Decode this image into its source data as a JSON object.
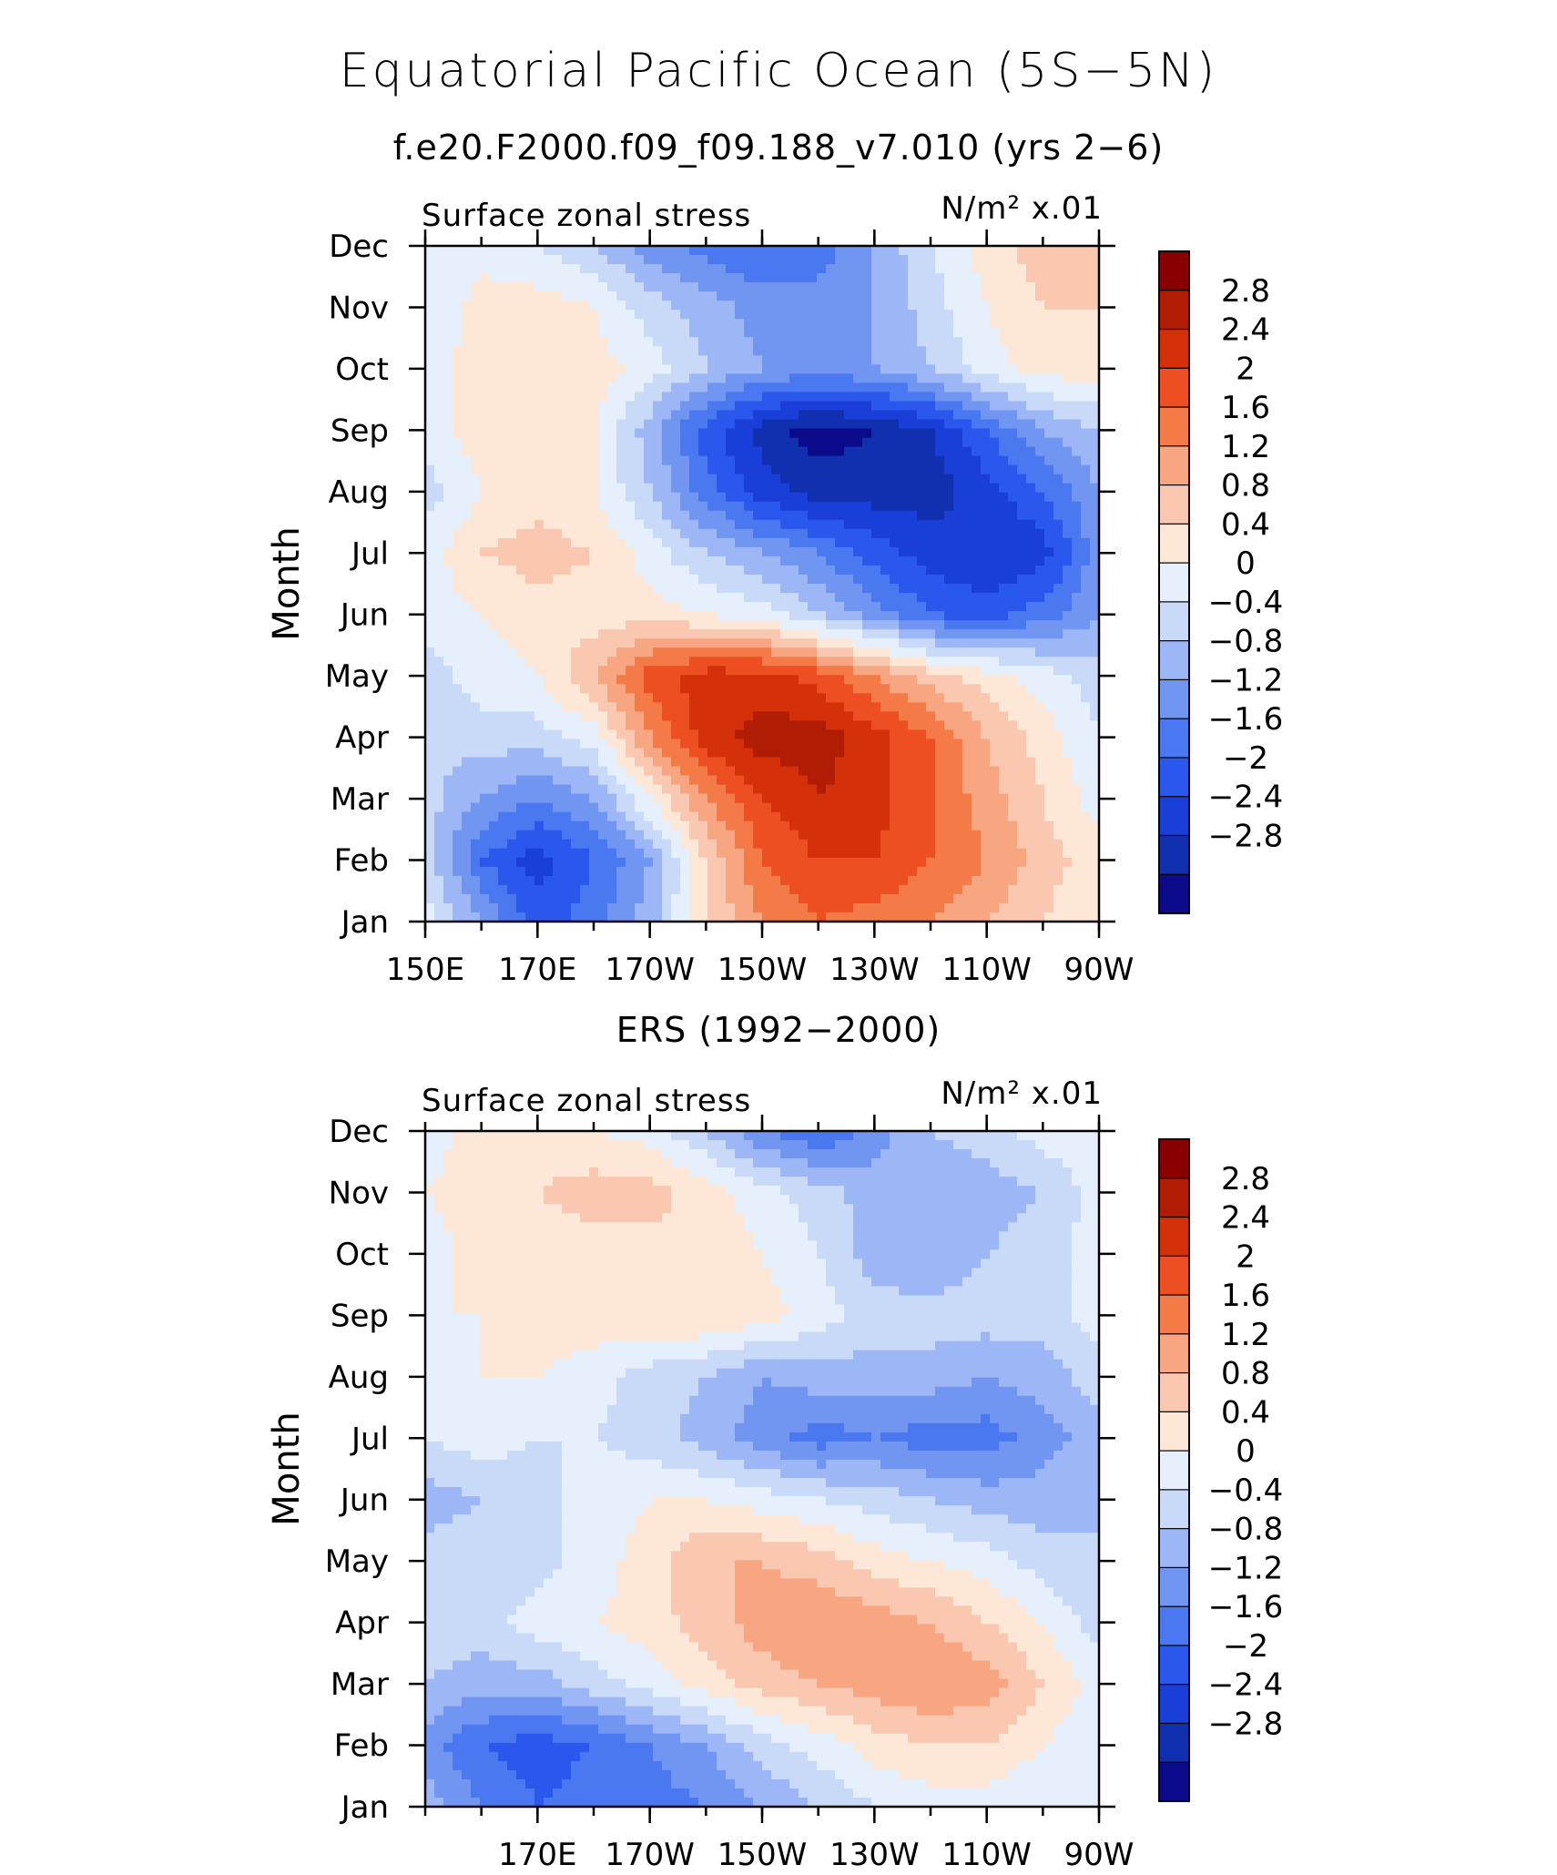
{
  "figure": {
    "title": "Equatorial Pacific Ocean (5S−5N)",
    "subtitle": "f.e20.F2000.f09_f09.188_v7.010 (yrs 2−6)"
  },
  "chart_data": [
    {
      "type": "heatmap",
      "panel_title": "",
      "left_label": "Surface zonal stress",
      "units_label": "N/m² x.01",
      "ylabel": "Month",
      "xlabel": "",
      "x_ticks": [
        "150E",
        "170E",
        "170W",
        "150W",
        "130W",
        "110W",
        "90W"
      ],
      "y_ticks": [
        "Jan",
        "Feb",
        "Mar",
        "Apr",
        "May",
        "Jun",
        "Jul",
        "Aug",
        "Sep",
        "Oct",
        "Nov",
        "Dec"
      ],
      "x_lon": [
        150,
        160,
        170,
        180,
        190,
        200,
        210,
        220,
        230,
        240,
        250,
        260,
        270
      ],
      "z": [
        [
          0.2,
          -0.8,
          -1.8,
          -1.4,
          -0.6,
          0.8,
          1.6,
          2.0,
          1.8,
          1.6,
          1.2,
          0.8,
          0.4
        ],
        [
          -0.2,
          -1.6,
          -2.2,
          -1.6,
          -0.8,
          0.8,
          2.0,
          2.4,
          2.4,
          2.0,
          1.6,
          1.0,
          0.6
        ],
        [
          -0.2,
          -0.8,
          -1.2,
          -0.8,
          0.4,
          1.6,
          2.4,
          2.8,
          2.6,
          2.0,
          1.4,
          0.8,
          0.2
        ],
        [
          -0.4,
          -0.2,
          -0.2,
          0.2,
          1.6,
          2.6,
          3.0,
          3.0,
          2.6,
          2.0,
          1.2,
          0.6,
          0.0
        ],
        [
          -0.2,
          0.2,
          0.4,
          1.2,
          2.2,
          2.6,
          2.6,
          2.2,
          1.6,
          1.0,
          0.6,
          0.2,
          -0.2
        ],
        [
          0.2,
          0.4,
          0.6,
          0.6,
          0.6,
          0.4,
          0.2,
          -0.4,
          -1.0,
          -1.6,
          -1.8,
          -1.4,
          -0.8
        ],
        [
          0.2,
          0.8,
          1.0,
          0.8,
          0.2,
          -0.4,
          -0.8,
          -1.2,
          -1.8,
          -2.2,
          -2.4,
          -2.2,
          -1.0
        ],
        [
          -0.2,
          0.4,
          0.6,
          0.4,
          -0.4,
          -1.4,
          -2.2,
          -2.6,
          -2.6,
          -2.6,
          -2.2,
          -1.6,
          -0.8
        ],
        [
          0.2,
          0.6,
          0.6,
          0.4,
          -0.6,
          -1.8,
          -2.6,
          -3.0,
          -2.8,
          -2.4,
          -1.6,
          -0.8,
          -0.4
        ],
        [
          0.2,
          0.6,
          0.6,
          0.6,
          0.2,
          -0.4,
          -0.8,
          -1.0,
          -0.8,
          -0.4,
          0.2,
          0.6,
          0.6
        ],
        [
          0.0,
          0.6,
          0.6,
          0.4,
          -0.2,
          -0.6,
          -1.0,
          -1.0,
          -0.8,
          -0.2,
          0.4,
          0.8,
          0.8
        ],
        [
          0.0,
          0.2,
          0.0,
          -0.4,
          -1.0,
          -1.4,
          -1.6,
          -1.4,
          -0.8,
          0.0,
          0.6,
          1.0,
          0.8
        ]
      ],
      "levels": [
        -2.8,
        -2.4,
        -2.0,
        -1.6,
        -1.2,
        -0.8,
        -0.4,
        0,
        0.4,
        0.8,
        1.2,
        1.6,
        2.0,
        2.4,
        2.8
      ],
      "colorbar_labels": [
        "2.8",
        "2.4",
        "2",
        "1.6",
        "1.2",
        "0.8",
        "0.4",
        "0",
        "−0.4",
        "−0.8",
        "−1.2",
        "−1.6",
        "−2",
        "−2.4",
        "−2.8"
      ],
      "colors": [
        "#0a0a8a",
        "#1030b0",
        "#1a3ed8",
        "#2a57ec",
        "#4a78f0",
        "#7096f2",
        "#9cb6f6",
        "#c8daf8",
        "#e6f0fc",
        "#fde8d8",
        "#fac8b0",
        "#f8a682",
        "#f47a48",
        "#ee4f22",
        "#d4300a",
        "#b01c04",
        "#880000"
      ]
    },
    {
      "type": "heatmap",
      "panel_title": "ERS (1992−2000)",
      "left_label": "Surface zonal stress",
      "units_label": "N/m² x.01",
      "ylabel": "Month",
      "xlabel": "",
      "x_ticks": [
        "170E",
        "170W",
        "150W",
        "130W",
        "110W",
        "90W"
      ],
      "y_ticks": [
        "Jan",
        "Feb",
        "Mar",
        "Apr",
        "May",
        "Jun",
        "Jul",
        "Aug",
        "Sep",
        "Oct",
        "Nov",
        "Dec"
      ],
      "x_lon": [
        150,
        160,
        170,
        180,
        190,
        200,
        210,
        220,
        230,
        240,
        250,
        260,
        270
      ],
      "z": [
        [
          -0.6,
          -1.2,
          -1.6,
          -1.4,
          -1.4,
          -1.2,
          -0.8,
          -0.4,
          0.0,
          0.2,
          0.2,
          0.0,
          0.0
        ],
        [
          -1.0,
          -1.6,
          -1.8,
          -1.6,
          -1.2,
          -0.8,
          -0.2,
          0.2,
          0.6,
          0.8,
          0.8,
          0.4,
          0.0
        ],
        [
          -0.4,
          -0.6,
          -0.6,
          -0.2,
          0.2,
          0.6,
          1.0,
          1.2,
          1.4,
          1.6,
          1.4,
          0.8,
          0.2
        ],
        [
          -0.2,
          -0.2,
          0.2,
          0.4,
          0.6,
          1.0,
          1.4,
          1.6,
          1.4,
          1.2,
          0.8,
          0.4,
          -0.2
        ],
        [
          -0.2,
          -0.2,
          -0.2,
          0.2,
          0.6,
          1.2,
          1.2,
          1.0,
          0.6,
          0.4,
          0.2,
          -0.2,
          -0.4
        ],
        [
          -0.6,
          -0.4,
          -0.2,
          0.2,
          0.4,
          0.4,
          0.2,
          0.0,
          -0.2,
          -0.4,
          -0.6,
          -0.6,
          -0.4
        ],
        [
          0.0,
          0.2,
          0.0,
          0.0,
          -0.2,
          -0.6,
          -1.0,
          -1.4,
          -1.2,
          -1.4,
          -1.4,
          -1.0,
          -0.6
        ],
        [
          0.2,
          0.4,
          0.4,
          0.2,
          -0.2,
          -0.4,
          -0.8,
          -0.6,
          -0.6,
          -0.6,
          -0.8,
          -0.6,
          -0.2
        ],
        [
          0.4,
          0.4,
          0.6,
          0.6,
          0.8,
          0.8,
          0.6,
          0.2,
          -0.2,
          -0.2,
          -0.2,
          -0.2,
          0.2
        ],
        [
          0.2,
          0.6,
          0.6,
          0.6,
          0.6,
          0.6,
          0.4,
          0.0,
          -0.6,
          -0.8,
          -0.4,
          -0.2,
          0.2
        ],
        [
          0.4,
          0.6,
          0.8,
          1.0,
          1.0,
          0.6,
          0.2,
          -0.2,
          -0.6,
          -0.8,
          -0.6,
          -0.4,
          0.2
        ],
        [
          0.2,
          0.6,
          0.6,
          0.4,
          0.2,
          -0.4,
          -1.2,
          -1.6,
          -1.0,
          -0.4,
          -0.2,
          0.2,
          0.2
        ]
      ],
      "levels": [
        -2.8,
        -2.4,
        -2.0,
        -1.6,
        -1.2,
        -0.8,
        -0.4,
        0,
        0.4,
        0.8,
        1.2,
        1.6,
        2.0,
        2.4,
        2.8
      ],
      "colorbar_labels": [
        "2.8",
        "2.4",
        "2",
        "1.6",
        "1.2",
        "0.8",
        "0.4",
        "0",
        "−0.4",
        "−0.8",
        "−1.2",
        "−1.6",
        "−2",
        "−2.4",
        "−2.8"
      ],
      "colors": [
        "#0a0a8a",
        "#1030b0",
        "#1a3ed8",
        "#2a57ec",
        "#4a78f0",
        "#7096f2",
        "#9cb6f6",
        "#c8daf8",
        "#e6f0fc",
        "#fde8d8",
        "#fac8b0",
        "#f8a682",
        "#f47a48",
        "#ee4f22",
        "#d4300a",
        "#b01c04",
        "#880000"
      ]
    }
  ]
}
